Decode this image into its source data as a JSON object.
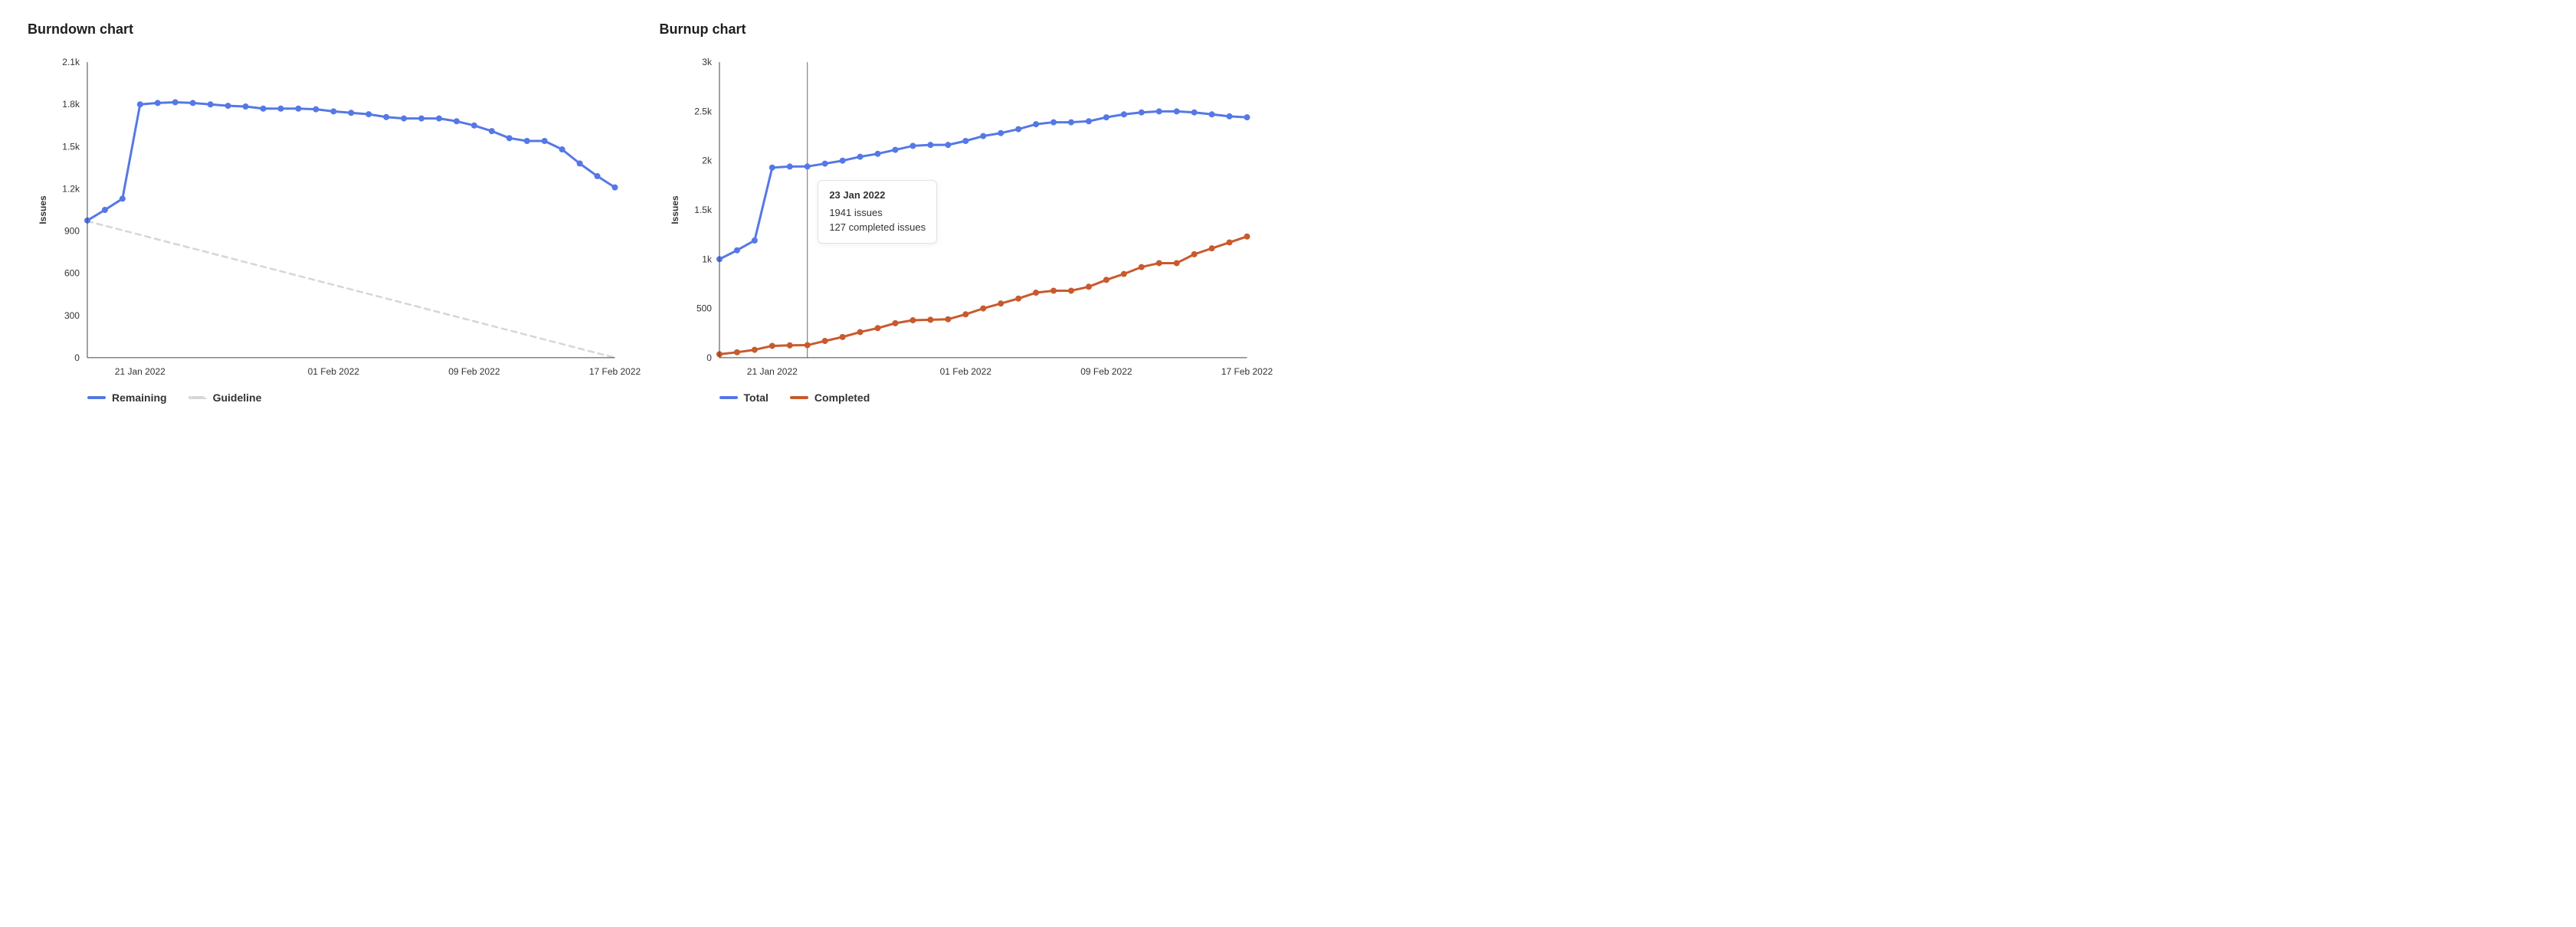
{
  "layout": {
    "panels": "side-by-side",
    "background_color": "#ffffff",
    "font_family": "-apple-system, Helvetica, Arial, sans-serif",
    "title_fontsize_pt": 18,
    "axis_label_fontsize_pt": 12,
    "legend_fontsize_pt": 14
  },
  "burndown": {
    "title": "Burndown chart",
    "type": "line",
    "y_axis": {
      "label": "Issues",
      "min": 0,
      "max": 2100,
      "ticks": [
        0,
        300,
        600,
        900,
        1200,
        1500,
        1800,
        2100
      ],
      "tick_labels": [
        "0",
        "300",
        "600",
        "900",
        "1.2k",
        "1.5k",
        "1.8k",
        "2.1k"
      ],
      "grid_color": "#eeeeee"
    },
    "x_axis": {
      "min_index": 0,
      "max_index": 30,
      "tick_indices": [
        3,
        14,
        22,
        30
      ],
      "tick_labels": [
        "21 Jan 2022",
        "01 Feb 2022",
        "09 Feb 2022",
        "17 Feb 2022"
      ]
    },
    "axis_line_color": "#444444",
    "series": {
      "remaining": {
        "label": "Remaining",
        "color": "#5578e6",
        "line_width": 3,
        "marker_radius": 3.5,
        "values": [
          975,
          1050,
          1130,
          1800,
          1810,
          1815,
          1810,
          1800,
          1790,
          1785,
          1770,
          1770,
          1770,
          1765,
          1750,
          1740,
          1730,
          1710,
          1700,
          1700,
          1700,
          1680,
          1650,
          1610,
          1560,
          1540,
          1540,
          1480,
          1380,
          1290,
          1210
        ]
      },
      "guideline": {
        "label": "Guideline",
        "color": "#d6d6d6",
        "line_width": 2.5,
        "dash": "7,6",
        "points": [
          [
            0,
            970
          ],
          [
            30,
            0
          ]
        ]
      }
    },
    "legend": [
      "remaining",
      "guideline"
    ]
  },
  "burnup": {
    "title": "Burnup chart",
    "type": "line",
    "y_axis": {
      "label": "Issues",
      "min": 0,
      "max": 3000,
      "ticks": [
        0,
        500,
        1000,
        1500,
        2000,
        2500,
        3000
      ],
      "tick_labels": [
        "0",
        "500",
        "1k",
        "1.5k",
        "2k",
        "2.5k",
        "3k"
      ],
      "grid_color": "#eeeeee"
    },
    "x_axis": {
      "min_index": 0,
      "max_index": 30,
      "tick_indices": [
        3,
        14,
        22,
        30
      ],
      "tick_labels": [
        "21 Jan 2022",
        "01 Feb 2022",
        "09 Feb 2022",
        "17 Feb 2022"
      ]
    },
    "axis_line_color": "#444444",
    "series": {
      "total": {
        "label": "Total",
        "color": "#5578e6",
        "line_width": 3,
        "marker_radius": 3.5,
        "values": [
          1000,
          1090,
          1190,
          1930,
          1940,
          1941,
          1970,
          2000,
          2040,
          2070,
          2110,
          2150,
          2160,
          2160,
          2200,
          2250,
          2280,
          2320,
          2370,
          2390,
          2390,
          2400,
          2440,
          2470,
          2490,
          2500,
          2500,
          2490,
          2470,
          2450,
          2440
        ]
      },
      "completed": {
        "label": "Completed",
        "color": "#c85a2e",
        "line_width": 3,
        "marker_radius": 3.5,
        "values": [
          35,
          55,
          80,
          120,
          125,
          127,
          170,
          210,
          260,
          300,
          350,
          380,
          385,
          390,
          440,
          500,
          550,
          600,
          660,
          680,
          680,
          720,
          790,
          850,
          920,
          960,
          960,
          1050,
          1110,
          1170,
          1230
        ]
      }
    },
    "legend": [
      "total",
      "completed"
    ],
    "hover": {
      "index": 5,
      "line_color": "#6b6b6b",
      "tooltip": {
        "title": "23 Jan 2022",
        "lines": [
          "1941 issues",
          "127 completed issues"
        ]
      }
    }
  }
}
